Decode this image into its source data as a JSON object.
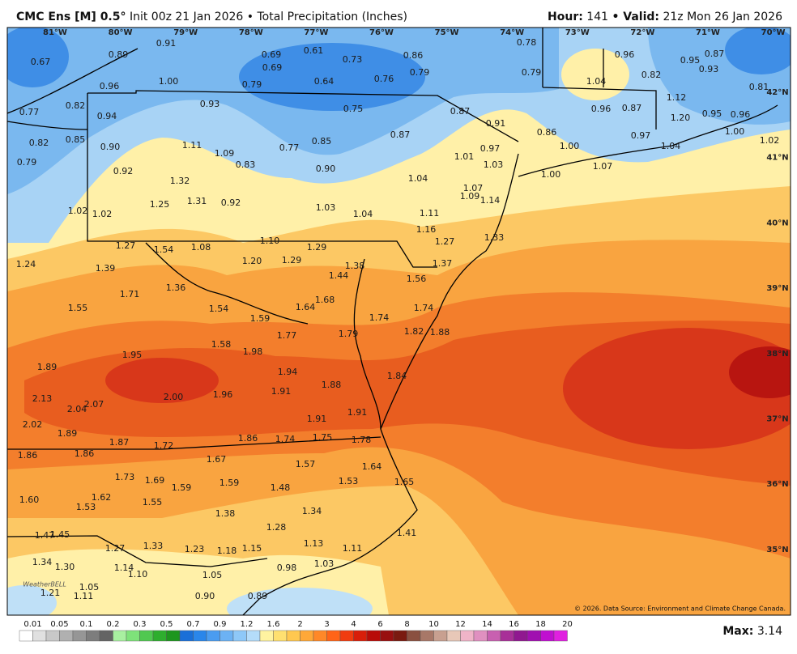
{
  "header": {
    "model": "CMC Ens [M] 0.5°",
    "init": "Init 00z 21 Jan 2026 • Total Precipitation (Inches)",
    "hour_label": "Hour:",
    "hour": "141",
    "valid_label": "• Valid:",
    "valid": "21z Mon 26 Jan 2026"
  },
  "map": {
    "longitude_labels": [
      "81°W",
      "80°W",
      "79°W",
      "78°W",
      "77°W",
      "76°W",
      "75°W",
      "74°W",
      "73°W",
      "72°W",
      "71°W",
      "70°W"
    ],
    "latitude_labels": [
      "42°N",
      "41°N",
      "40°N",
      "39°N",
      "38°N",
      "37°N",
      "36°N",
      "35°N"
    ],
    "station_values": [
      "0.67",
      "0.89",
      "0.91",
      "0.69",
      "0.61",
      "0.73",
      "0.86",
      "0.78",
      "0.96",
      "0.95",
      "0.87",
      "0.69",
      "0.79",
      "0.79",
      "0.82",
      "0.93",
      "1.00",
      "0.79",
      "0.64",
      "0.76",
      "1.04",
      "0.81",
      "0.96",
      "0.93",
      "0.75",
      "0.87",
      "0.96",
      "0.87",
      "1.12",
      "0.77",
      "0.82",
      "0.94",
      "0.91",
      "0.95",
      "0.96",
      "1.20",
      "0.82",
      "0.85",
      "0.90",
      "1.11",
      "1.09",
      "0.77",
      "0.85",
      "0.87",
      "0.86",
      "0.97",
      "1.00",
      "1.02",
      "0.79",
      "0.92",
      "0.83",
      "0.90",
      "1.01",
      "0.97",
      "1.03",
      "1.00",
      "1.04",
      "1.00",
      "1.07",
      "1.04",
      "1.07",
      "1.32",
      "1.02",
      "1.02",
      "1.25",
      "1.31",
      "0.92",
      "1.03",
      "1.04",
      "1.09",
      "1.14",
      "1.11",
      "1.16",
      "1.27",
      "1.33",
      "1.27",
      "1.54",
      "1.08",
      "1.10",
      "1.29",
      "1.24",
      "1.39",
      "1.20",
      "1.29",
      "1.37",
      "1.38",
      "1.44",
      "1.56",
      "1.71",
      "1.36",
      "1.68",
      "1.55",
      "1.54",
      "1.59",
      "1.64",
      "1.74",
      "1.74",
      "1.77",
      "1.79",
      "1.82",
      "1.88",
      "1.58",
      "1.98",
      "1.95",
      "1.89",
      "1.94",
      "1.84",
      "1.88",
      "1.91",
      "2.00",
      "1.96",
      "2.13",
      "2.04",
      "2.07",
      "1.91",
      "1.91",
      "2.02",
      "1.89",
      "1.87",
      "1.72",
      "1.86",
      "1.74",
      "1.75",
      "1.78",
      "1.86",
      "1.86",
      "1.67",
      "1.57",
      "1.64",
      "1.73",
      "1.69",
      "1.59",
      "1.59",
      "1.48",
      "1.53",
      "1.65",
      "1.60",
      "1.62",
      "1.53",
      "1.55",
      "1.38",
      "1.34",
      "1.28",
      "1.47",
      "1.45",
      "1.41",
      "1.27",
      "1.33",
      "1.23",
      "1.18",
      "1.15",
      "1.13",
      "1.11",
      "1.34",
      "1.30",
      "1.14",
      "1.10",
      "0.98",
      "1.03",
      "1.05",
      "1.05",
      "1.21",
      "1.11",
      "0.90",
      "0.89"
    ],
    "copyright": "© 2026. Data Source: Environment and Climate Change Canada.",
    "logo": "WeatherBELL"
  },
  "colorbar": {
    "labels": [
      "0.01",
      "0.05",
      "0.1",
      "0.2",
      "0.3",
      "0.5",
      "0.7",
      "0.9",
      "1.2",
      "1.6",
      "2",
      "3",
      "4",
      "6",
      "8",
      "10",
      "12",
      "14",
      "16",
      "18",
      "20"
    ],
    "colors": [
      "#ffffff",
      "#e0e0e0",
      "#c8c8c8",
      "#b0b0b0",
      "#969696",
      "#7d7d7d",
      "#646464",
      "#a8f0a0",
      "#7ee27a",
      "#50c850",
      "#2eae2e",
      "#1e961e",
      "#1a6fd8",
      "#2a86ea",
      "#4a9cf0",
      "#6cb2f4",
      "#8ec8f8",
      "#b4dcfa",
      "#fff3a0",
      "#ffe070",
      "#ffc850",
      "#ffa838",
      "#ff8828",
      "#ff6418",
      "#f03c10",
      "#d81e0a",
      "#b80c08",
      "#981010",
      "#7a1a10",
      "#8a5040",
      "#a87868",
      "#c8a090",
      "#e8c8b8",
      "#f0b4c8",
      "#e090c0",
      "#c860b0",
      "#a83098",
      "#901890",
      "#a010b0",
      "#c010d0",
      "#e020e0"
    ]
  },
  "footer": {
    "max_label": "Max:",
    "max_value": "3.14"
  }
}
